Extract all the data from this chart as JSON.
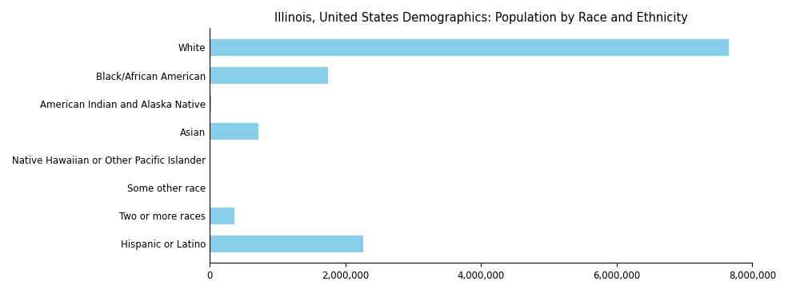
{
  "title": "Illinois, United States Demographics: Population by Race and Ethnicity",
  "categories": [
    "White",
    "Black/African American",
    "American Indian and Alaska Native",
    "Asian",
    "Native Hawaiian or Other Pacific Islander",
    "Some other race",
    "Two or more races",
    "Hispanic or Latino"
  ],
  "values": [
    7650000,
    1750000,
    20000,
    720000,
    5000,
    15000,
    370000,
    2270000
  ],
  "bar_color": "#87CEEB",
  "background_color": "#ffffff",
  "xlim_max": 8000000,
  "xtick_interval": 2000000,
  "title_fontsize": 10.5,
  "label_fontsize": 8.5
}
